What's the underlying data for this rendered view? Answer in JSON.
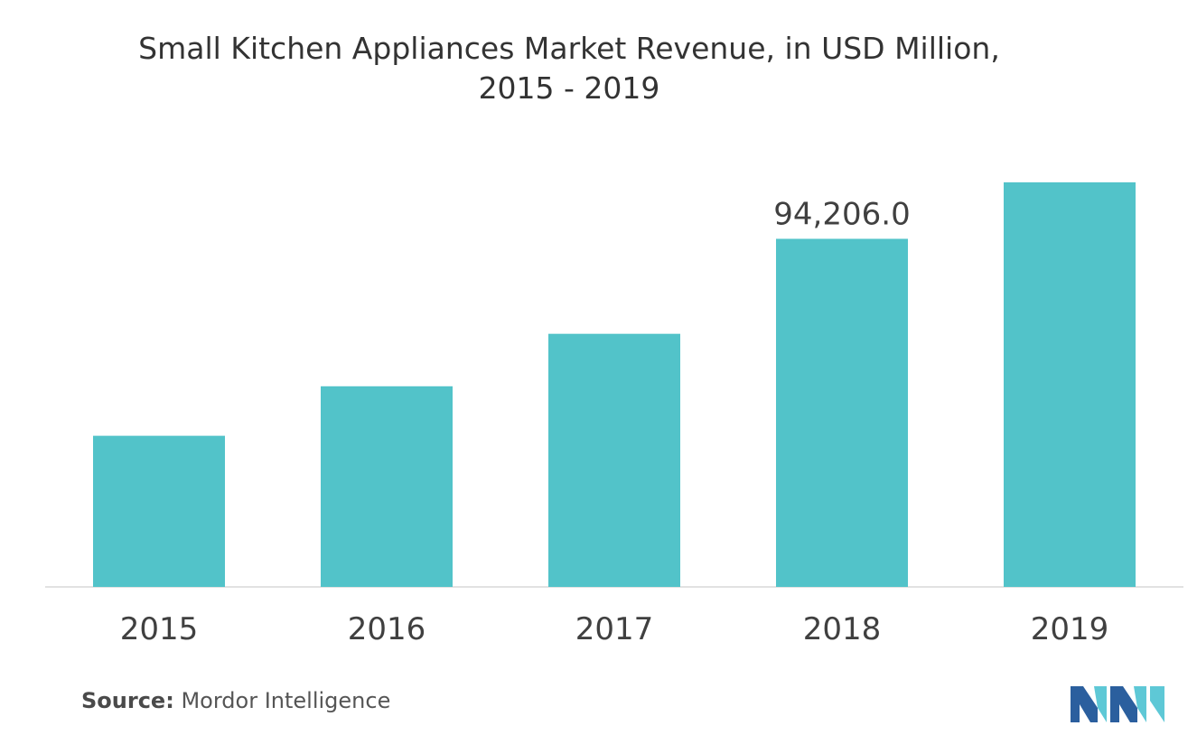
{
  "chart_data": {
    "type": "bar",
    "title_lines": [
      "Small Kitchen Appliances Market Revenue, in USD Million,",
      "2015 - 2019"
    ],
    "categories": [
      "2015",
      "2016",
      "2017",
      "2018",
      "2019"
    ],
    "values": [
      40900,
      54300,
      68500,
      94206.0,
      109500
    ],
    "data_labels": [
      "",
      "",
      "",
      "94,206.0",
      ""
    ],
    "xlabel": "",
    "ylabel": "",
    "ylim": [
      0,
      130000
    ],
    "grid": false,
    "bar_color": "#52c3c9",
    "axis_color": "#d9d9d9"
  },
  "footer": {
    "source_label": "Source:",
    "source_value": "Mordor Intelligence"
  },
  "logo": {
    "icon": "mordor-intelligence-logo-icon",
    "colors": [
      "#2b5f9e",
      "#5ec8d6"
    ]
  }
}
